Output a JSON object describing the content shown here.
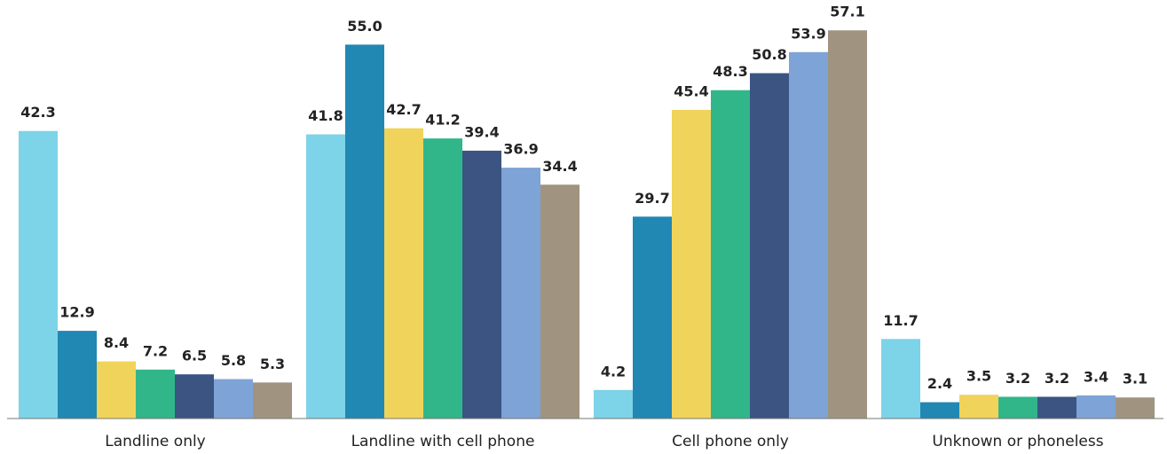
{
  "chart_data": {
    "type": "bar",
    "categories": [
      "Landline only",
      "Landline with cell phone",
      "Cell phone only",
      "Unknown or phoneless"
    ],
    "series": [
      {
        "color": "#7dd3e8",
        "values": [
          42.3,
          41.8,
          4.2,
          11.7
        ]
      },
      {
        "color": "#2187b3",
        "values": [
          12.9,
          55.0,
          29.7,
          2.4
        ],
        "value_labels": [
          "12.9",
          "55.0",
          "29.7",
          "2.4"
        ]
      },
      {
        "color": "#f0d35a",
        "values": [
          8.4,
          42.7,
          45.4,
          3.5
        ]
      },
      {
        "color": "#31b68a",
        "values": [
          7.2,
          41.2,
          48.3,
          3.2
        ]
      },
      {
        "color": "#3b5482",
        "values": [
          6.5,
          39.4,
          50.8,
          3.2
        ]
      },
      {
        "color": "#7ea3d6",
        "values": [
          5.8,
          36.9,
          53.9,
          3.4
        ]
      },
      {
        "color": "#a09480",
        "values": [
          5.3,
          34.4,
          57.1,
          3.1
        ]
      }
    ],
    "ylim": [
      0,
      60
    ]
  }
}
